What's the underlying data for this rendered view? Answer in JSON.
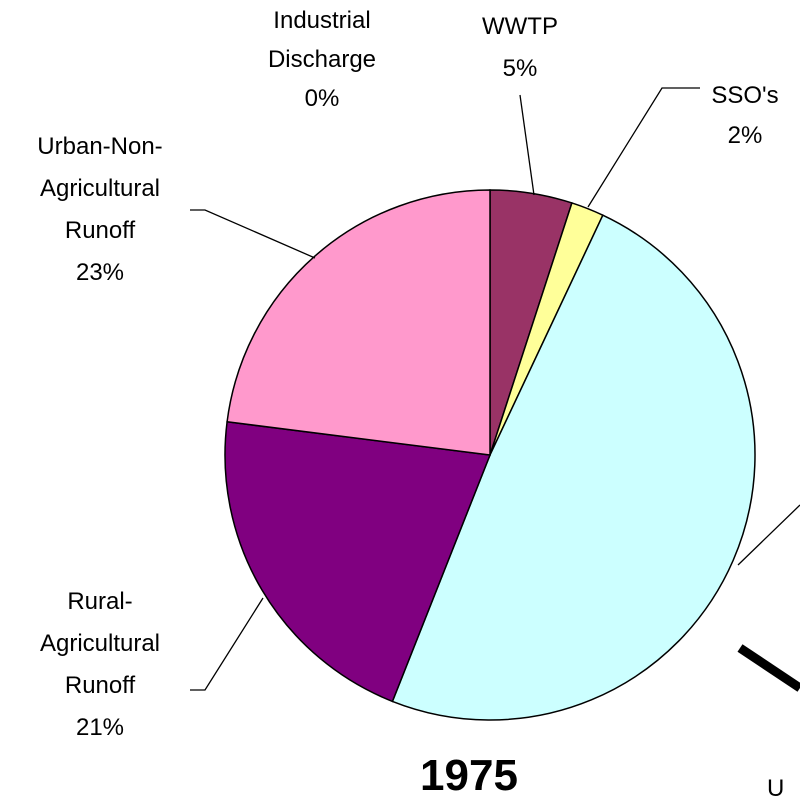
{
  "chart_data": {
    "type": "pie",
    "title": "1975",
    "categories": [
      [
        "Industrial",
        "Discharge"
      ],
      [
        "WWTP"
      ],
      [
        "SSO's"
      ],
      [
        "U"
      ],
      [
        "Rural-",
        "Agricultural",
        "Runoff"
      ],
      [
        "Urban-Non-",
        "Agricultural",
        "Runoff"
      ]
    ],
    "values": [
      0,
      5,
      2,
      49,
      21,
      23
    ],
    "value_labels": [
      "0%",
      "5%",
      "2%",
      null,
      "21%",
      "23%"
    ],
    "colors": [
      "#9999ff",
      "#993366",
      "#ffff99",
      "#ccffff",
      "#800080",
      "#ff99cc"
    ]
  }
}
